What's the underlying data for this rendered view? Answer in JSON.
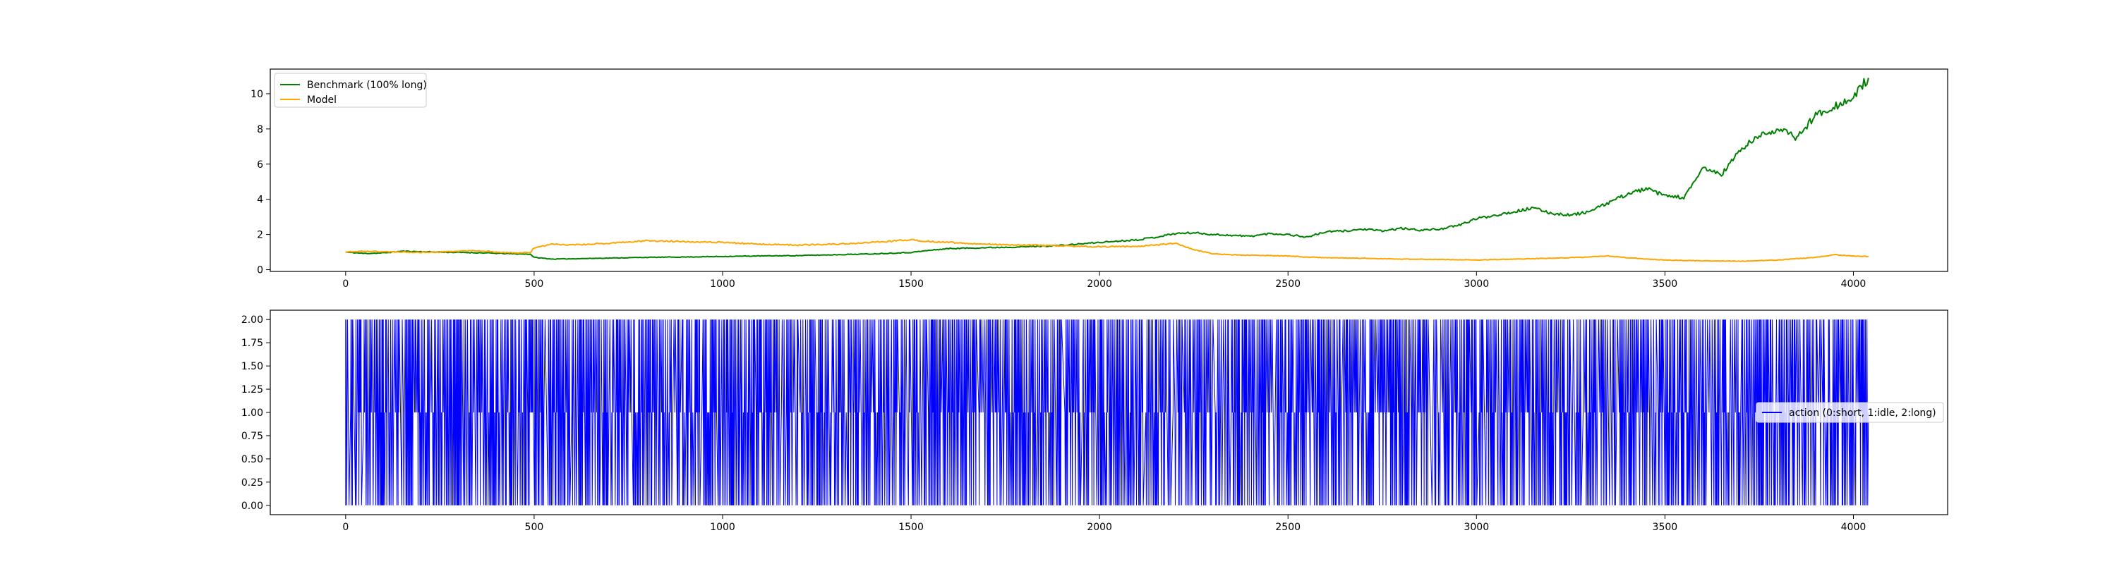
{
  "chart_data": [
    {
      "type": "line",
      "title": "",
      "xlabel": "",
      "ylabel": "",
      "xlim": [
        -200,
        4250
      ],
      "ylim": [
        -0.1,
        11.4
      ],
      "xticks": [
        "0",
        "500",
        "1000",
        "1500",
        "2000",
        "2500",
        "3000",
        "3500",
        "4000"
      ],
      "yticks": [
        "0",
        "2",
        "4",
        "6",
        "8",
        "10"
      ],
      "legend": {
        "position": "top-left"
      },
      "grid": false,
      "series": [
        {
          "name": "Benchmark (100% long)",
          "color": "#008000",
          "x": [
            0,
            50,
            100,
            150,
            200,
            250,
            300,
            350,
            400,
            450,
            490,
            500,
            550,
            600,
            700,
            800,
            900,
            1000,
            1100,
            1200,
            1300,
            1400,
            1500,
            1550,
            1600,
            1700,
            1800,
            1900,
            2000,
            2100,
            2150,
            2200,
            2250,
            2300,
            2350,
            2400,
            2450,
            2500,
            2550,
            2600,
            2650,
            2700,
            2750,
            2800,
            2850,
            2900,
            2950,
            3000,
            3050,
            3100,
            3150,
            3200,
            3250,
            3300,
            3350,
            3400,
            3450,
            3500,
            3550,
            3580,
            3600,
            3650,
            3700,
            3750,
            3800,
            3850,
            3900,
            3950,
            4000,
            4020,
            4040
          ],
          "values": [
            1.0,
            0.92,
            0.95,
            1.05,
            1.02,
            1.0,
            0.98,
            0.96,
            0.93,
            0.9,
            0.88,
            0.7,
            0.6,
            0.62,
            0.66,
            0.7,
            0.72,
            0.75,
            0.78,
            0.8,
            0.85,
            0.9,
            0.98,
            1.1,
            1.2,
            1.25,
            1.3,
            1.38,
            1.55,
            1.7,
            1.85,
            2.05,
            2.1,
            2.0,
            1.95,
            1.9,
            2.05,
            2.0,
            1.85,
            2.15,
            2.2,
            2.3,
            2.2,
            2.35,
            2.25,
            2.3,
            2.5,
            2.9,
            3.1,
            3.3,
            3.5,
            3.2,
            3.1,
            3.3,
            3.8,
            4.3,
            4.6,
            4.2,
            4.1,
            5.0,
            5.8,
            5.4,
            6.8,
            7.6,
            8.0,
            7.5,
            8.8,
            9.3,
            9.7,
            10.4,
            10.9
          ]
        },
        {
          "name": "Model",
          "color": "#ffa500",
          "x": [
            0,
            50,
            100,
            150,
            200,
            250,
            300,
            350,
            400,
            450,
            490,
            500,
            550,
            600,
            700,
            800,
            900,
            1000,
            1100,
            1200,
            1300,
            1400,
            1500,
            1550,
            1600,
            1700,
            1800,
            1900,
            2000,
            2100,
            2150,
            2200,
            2250,
            2300,
            2350,
            2400,
            2450,
            2500,
            2550,
            2600,
            2700,
            2800,
            2900,
            3000,
            3100,
            3200,
            3300,
            3350,
            3400,
            3450,
            3500,
            3600,
            3700,
            3800,
            3900,
            3950,
            4000,
            4040
          ],
          "values": [
            1.0,
            1.05,
            1.02,
            1.0,
            0.98,
            1.0,
            1.05,
            1.08,
            1.0,
            0.95,
            0.98,
            1.25,
            1.45,
            1.4,
            1.5,
            1.65,
            1.6,
            1.55,
            1.45,
            1.4,
            1.45,
            1.55,
            1.7,
            1.6,
            1.55,
            1.45,
            1.4,
            1.35,
            1.3,
            1.32,
            1.4,
            1.5,
            1.15,
            0.9,
            0.85,
            0.82,
            0.8,
            0.78,
            0.72,
            0.68,
            0.65,
            0.6,
            0.58,
            0.55,
            0.6,
            0.65,
            0.72,
            0.78,
            0.68,
            0.6,
            0.55,
            0.5,
            0.48,
            0.55,
            0.7,
            0.85,
            0.78,
            0.75
          ]
        }
      ]
    },
    {
      "type": "line",
      "title": "",
      "xlabel": "",
      "ylabel": "",
      "xlim": [
        -200,
        4250
      ],
      "ylim": [
        -0.1,
        2.1
      ],
      "xticks": [
        "0",
        "500",
        "1000",
        "1500",
        "2000",
        "2500",
        "3000",
        "3500",
        "4000"
      ],
      "yticks": [
        "0.00",
        "0.25",
        "0.50",
        "0.75",
        "1.00",
        "1.25",
        "1.50",
        "1.75",
        "2.00"
      ],
      "legend": {
        "position": "center-right"
      },
      "grid": false,
      "series": [
        {
          "name": "action (0:short, 1:idle, 2:long)",
          "color": "#0000ff",
          "levels": [
            0,
            1,
            2
          ],
          "x_range": [
            0,
            4040
          ]
        }
      ]
    }
  ]
}
